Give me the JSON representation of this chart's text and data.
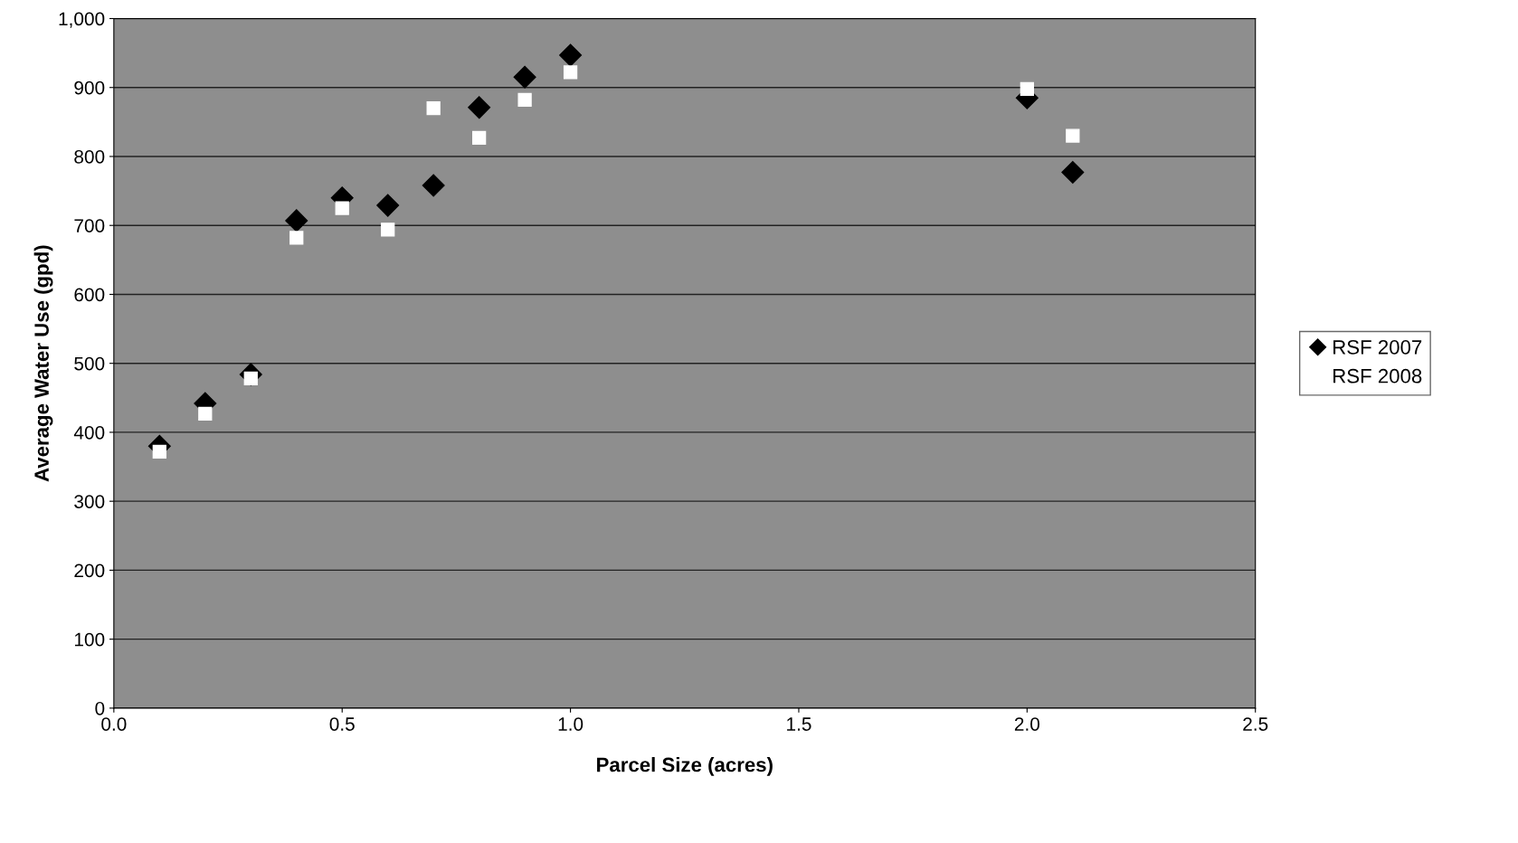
{
  "chart_data": {
    "type": "scatter",
    "xlabel": "Parcel Size (acres)",
    "ylabel": "Average Water Use (gpd)",
    "x": [
      0.1,
      0.2,
      0.3,
      0.4,
      0.5,
      0.6,
      0.7,
      0.8,
      0.9,
      1.0,
      2.0,
      2.1
    ],
    "series": [
      {
        "name": "RSF 2007",
        "color": "#000000",
        "marker": "diamond",
        "values": [
          380,
          442,
          484,
          707,
          740,
          729,
          758,
          871,
          915,
          947,
          885,
          777
        ]
      },
      {
        "name": "RSF 2008",
        "color": "#ffffff",
        "marker": "square",
        "values": [
          372,
          427,
          478,
          682,
          725,
          694,
          870,
          827,
          882,
          922,
          898,
          830
        ]
      }
    ],
    "xlim": [
      0,
      2.5
    ],
    "xticks": [
      {
        "value": 0,
        "label": "0.0"
      },
      {
        "value": 0.5,
        "label": "0.5"
      },
      {
        "value": 1.0,
        "label": "1.0"
      },
      {
        "value": 1.5,
        "label": "1.5"
      },
      {
        "value": 2.0,
        "label": "2.0"
      },
      {
        "value": 2.5,
        "label": "2.5"
      }
    ],
    "ylim": [
      0,
      1000
    ],
    "yticks": [
      0,
      100,
      200,
      300,
      400,
      500,
      600,
      700,
      800,
      900,
      {
        "value": 1000,
        "label": "1,000"
      }
    ],
    "grid": "y",
    "legend": "right"
  }
}
